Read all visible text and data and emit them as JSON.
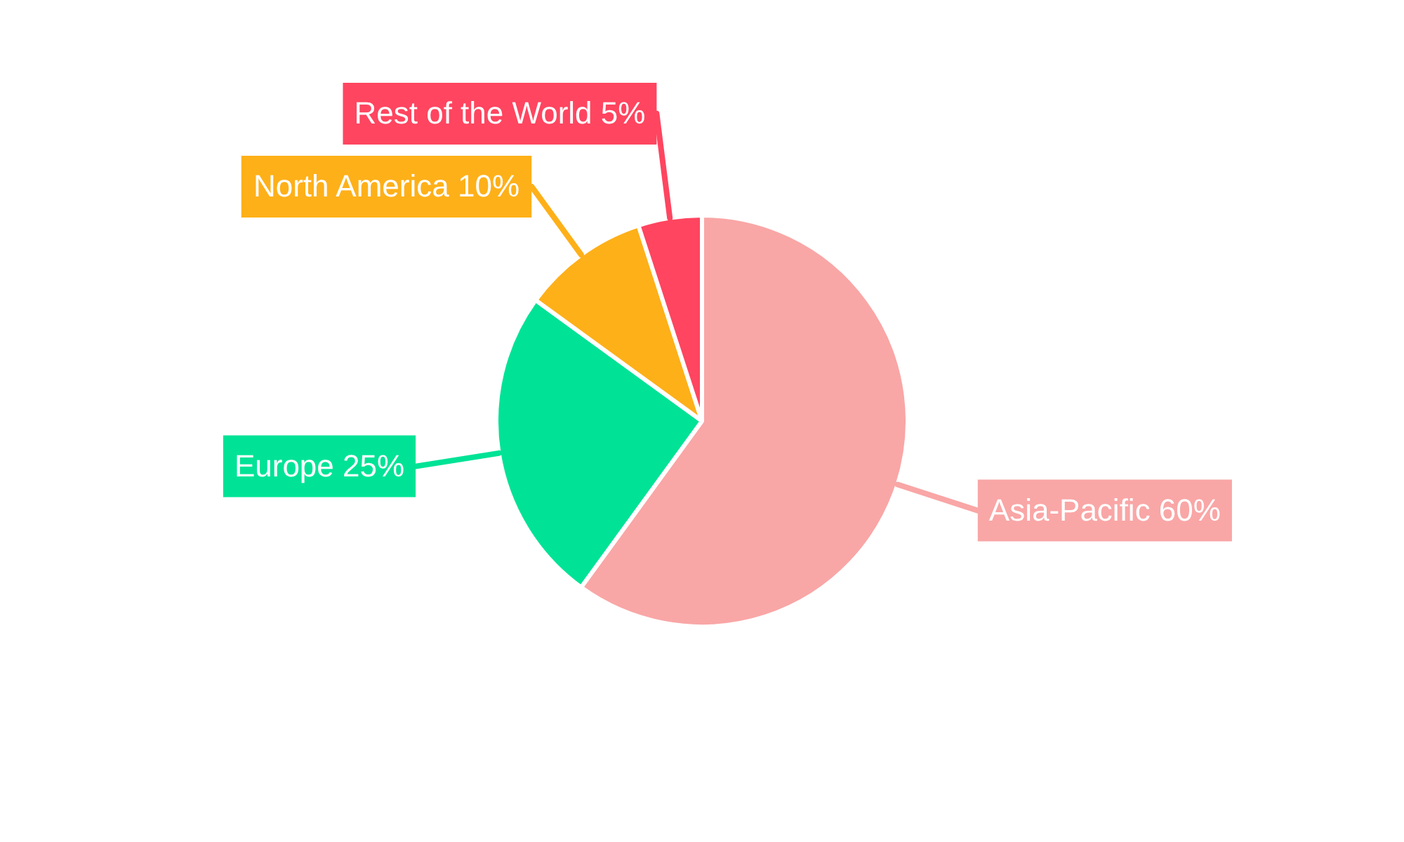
{
  "chart_data": {
    "type": "pie",
    "categories": [
      "Asia-Pacific",
      "Europe",
      "North America",
      "Rest of the World"
    ],
    "values": [
      60,
      25,
      10,
      5
    ],
    "value_labels": [
      "60%",
      "25%",
      "10%",
      "5%"
    ],
    "colors": [
      "#f9a6a6",
      "#00e396",
      "#feb019",
      "#ff4560"
    ],
    "legend": false
  }
}
